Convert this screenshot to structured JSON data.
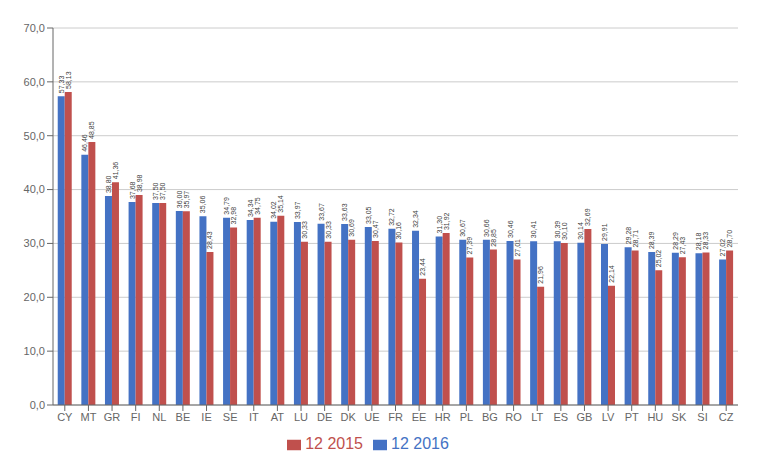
{
  "chart_data": {
    "type": "bar",
    "categories": [
      "CY",
      "MT",
      "GR",
      "FI",
      "NL",
      "BE",
      "IE",
      "SE",
      "IT",
      "AT",
      "LU",
      "DE",
      "DK",
      "UE",
      "FR",
      "EE",
      "HR",
      "PL",
      "BG",
      "RO",
      "LT",
      "ES",
      "GB",
      "LV",
      "PT",
      "HU",
      "SK",
      "SI",
      "CZ"
    ],
    "series": [
      {
        "name": "12 2016",
        "color": "#4472C4",
        "values": [
          57.33,
          46.46,
          38.8,
          37.68,
          37.5,
          36.0,
          35.06,
          34.79,
          34.34,
          34.02,
          33.97,
          33.67,
          33.63,
          33.05,
          32.72,
          32.34,
          31.3,
          30.67,
          30.66,
          30.46,
          30.41,
          30.39,
          30.14,
          29.91,
          29.28,
          28.39,
          28.29,
          28.18,
          27.02
        ],
        "value_labels": [
          "57,33",
          "46,46",
          "38,80",
          "37,68",
          "37,50",
          "36,00",
          "35,06",
          "34,79",
          "34,34",
          "34,02",
          "33,97",
          "33,67",
          "33,63",
          "33,05",
          "32,72",
          "32,34",
          "31,30",
          "30,67",
          "30,66",
          "30,46",
          "30,41",
          "30,39",
          "30,14",
          "29,91",
          "29,28",
          "28,39",
          "28,29",
          "28,18",
          "27,02"
        ]
      },
      {
        "name": "12 2015",
        "color": "#C0504D",
        "values": [
          58.13,
          48.85,
          41.36,
          38.98,
          37.5,
          35.97,
          28.43,
          32.98,
          34.75,
          35.14,
          30.33,
          30.33,
          30.69,
          30.47,
          30.16,
          23.44,
          31.92,
          27.39,
          28.85,
          27.01,
          21.96,
          30.1,
          32.69,
          22.14,
          28.71,
          25.02,
          27.43,
          28.33,
          28.7
        ],
        "value_labels": [
          "58,13",
          "48,85",
          "41,36",
          "38,98",
          "37,50",
          "35,97",
          "28,43",
          "32,98",
          "34,75",
          "35,14",
          "30,33",
          "30,33",
          "30,69",
          "30,47",
          "30,16",
          "23,44",
          "31,92",
          "27,39",
          "28,85",
          "27,01",
          "21,96",
          "30,10",
          "32,69",
          "22,14",
          "28,71",
          "25,02",
          "27,43",
          "28,33",
          "28,70"
        ]
      }
    ],
    "ylim": [
      0,
      70
    ],
    "yticks": [
      {
        "value": 0,
        "label": "0,0"
      },
      {
        "value": 10,
        "label": "10,0"
      },
      {
        "value": 20,
        "label": "20,0"
      },
      {
        "value": 30,
        "label": "30,0"
      },
      {
        "value": 40,
        "label": "40,0"
      },
      {
        "value": 50,
        "label": "50,0"
      },
      {
        "value": 60,
        "label": "60,0"
      },
      {
        "value": 70,
        "label": "70,0"
      }
    ],
    "grid": true,
    "data_labels": true,
    "legend": "bottom"
  }
}
